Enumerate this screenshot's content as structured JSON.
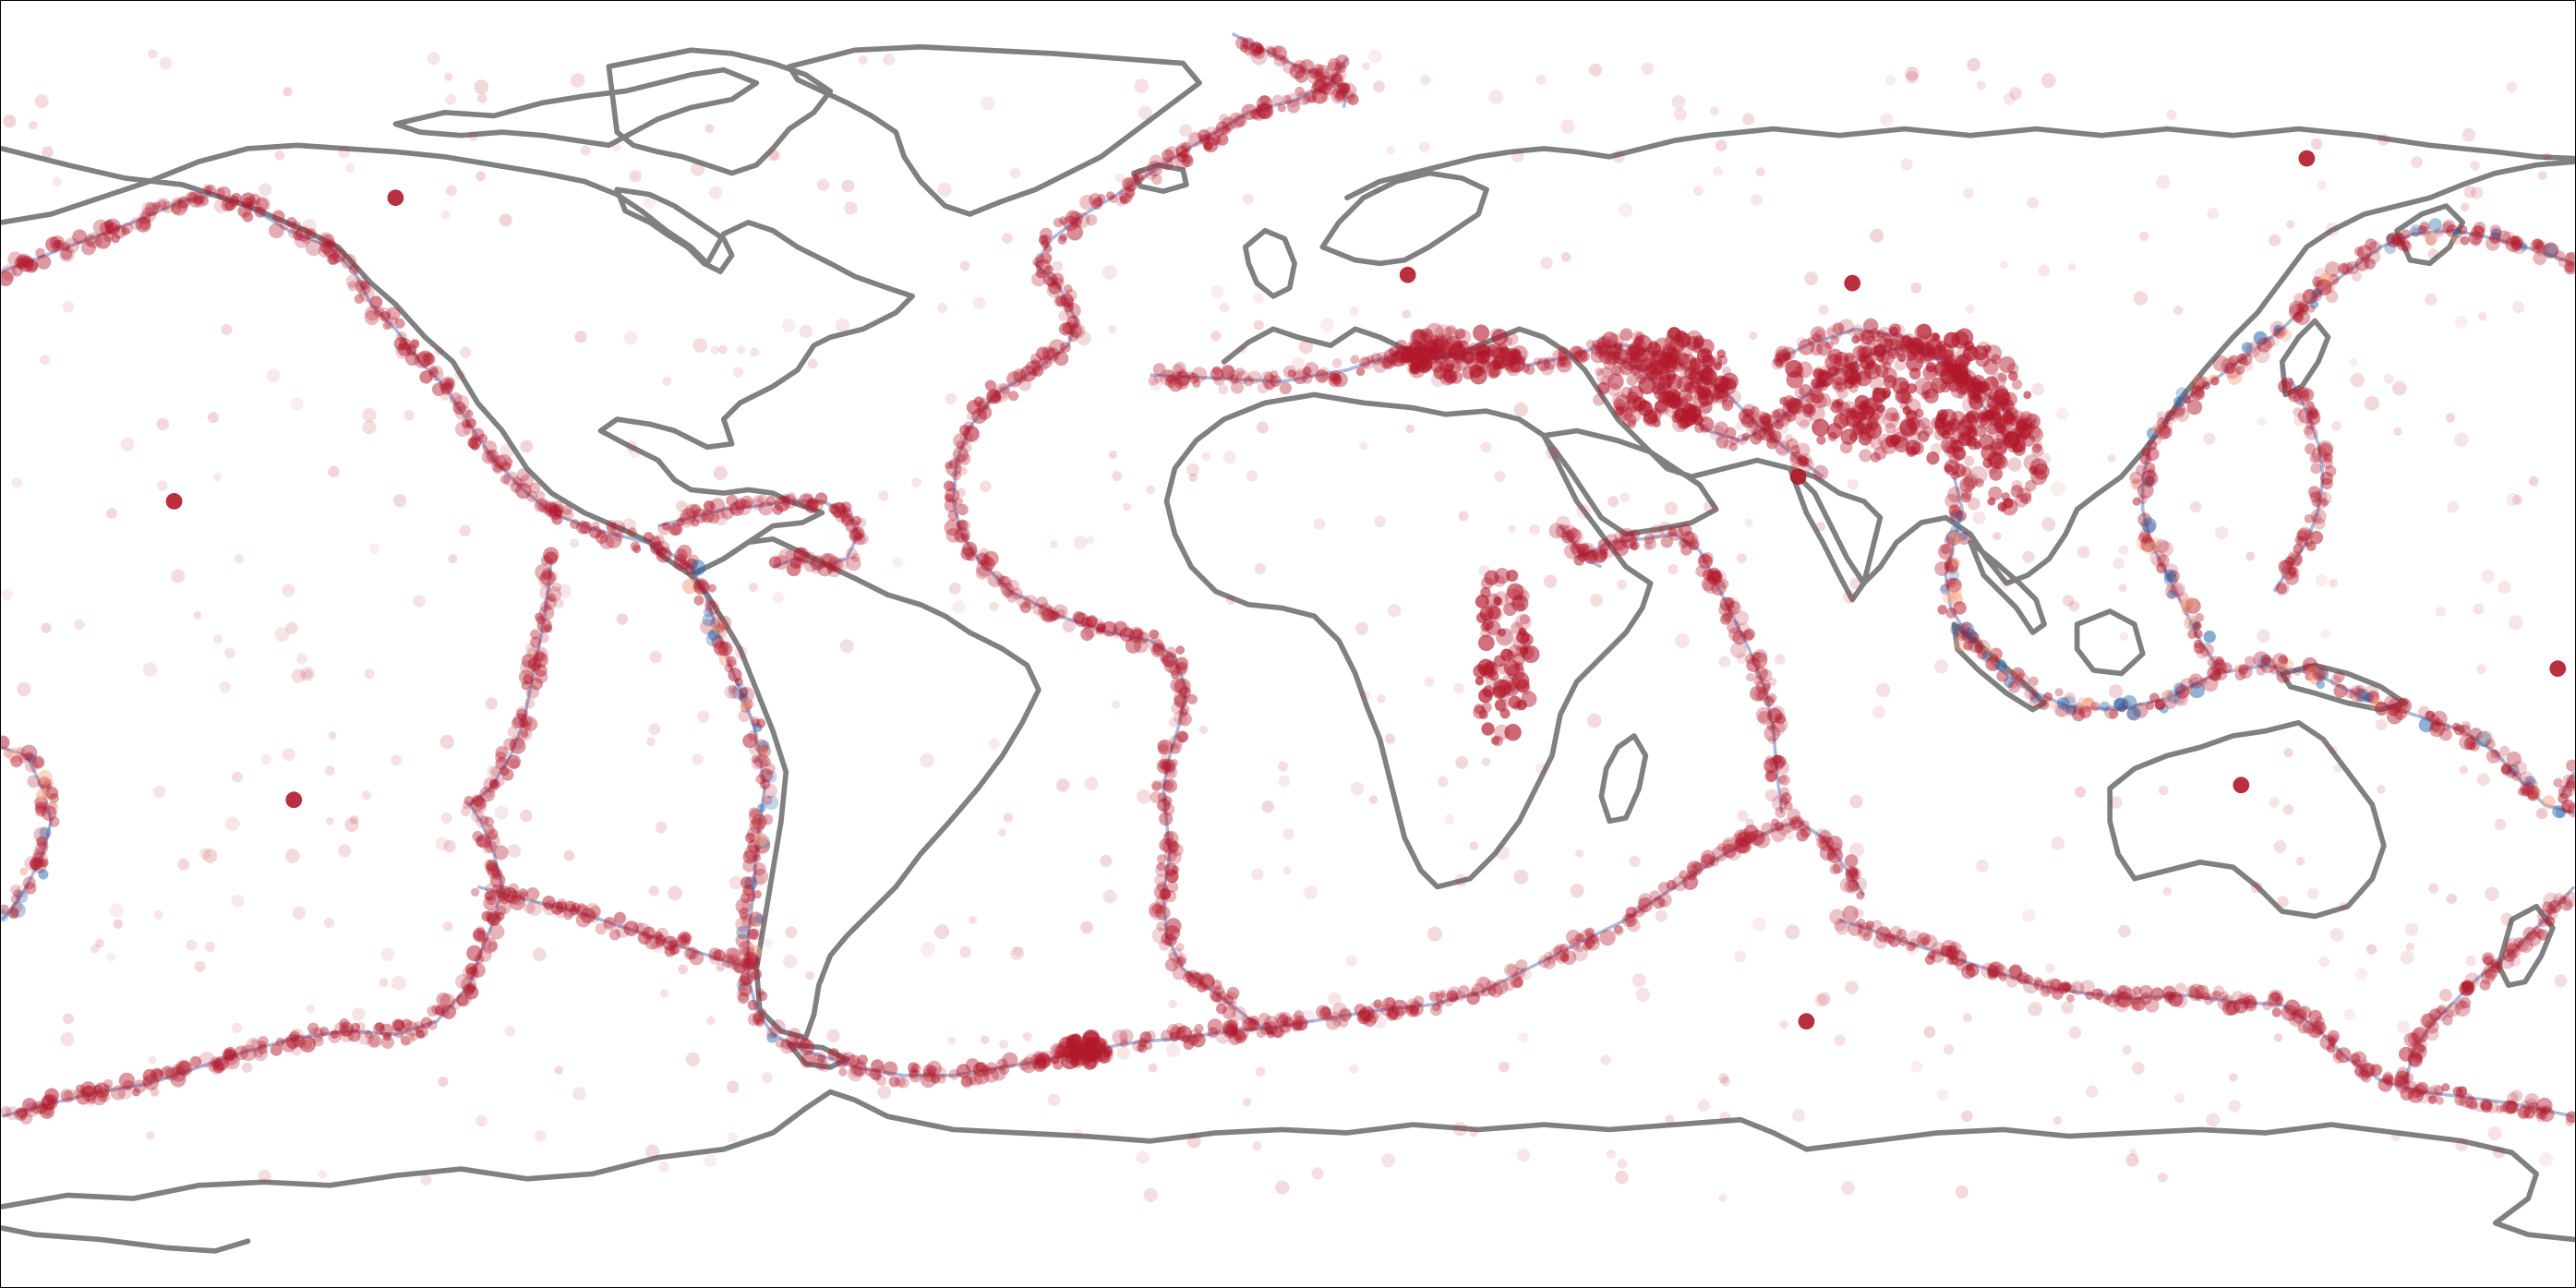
{
  "map": {
    "projection": "equirectangular",
    "extent": {
      "lon": [
        -180,
        180
      ],
      "lat": [
        -90,
        90
      ]
    },
    "frame": true,
    "background": "#ffffff"
  },
  "colors": {
    "coastline": "#808080",
    "plate_boundary": "#6a7fb8",
    "shallow_quake": "#b2182b",
    "intermediate_quake": "#f4a582",
    "deep_quake": "#2166ac",
    "frame": "#000000"
  },
  "layers": [
    "coastlines",
    "plate-boundaries",
    "earthquake-epicenters"
  ],
  "depth_classes": [
    "shallow",
    "intermediate",
    "deep"
  ]
}
